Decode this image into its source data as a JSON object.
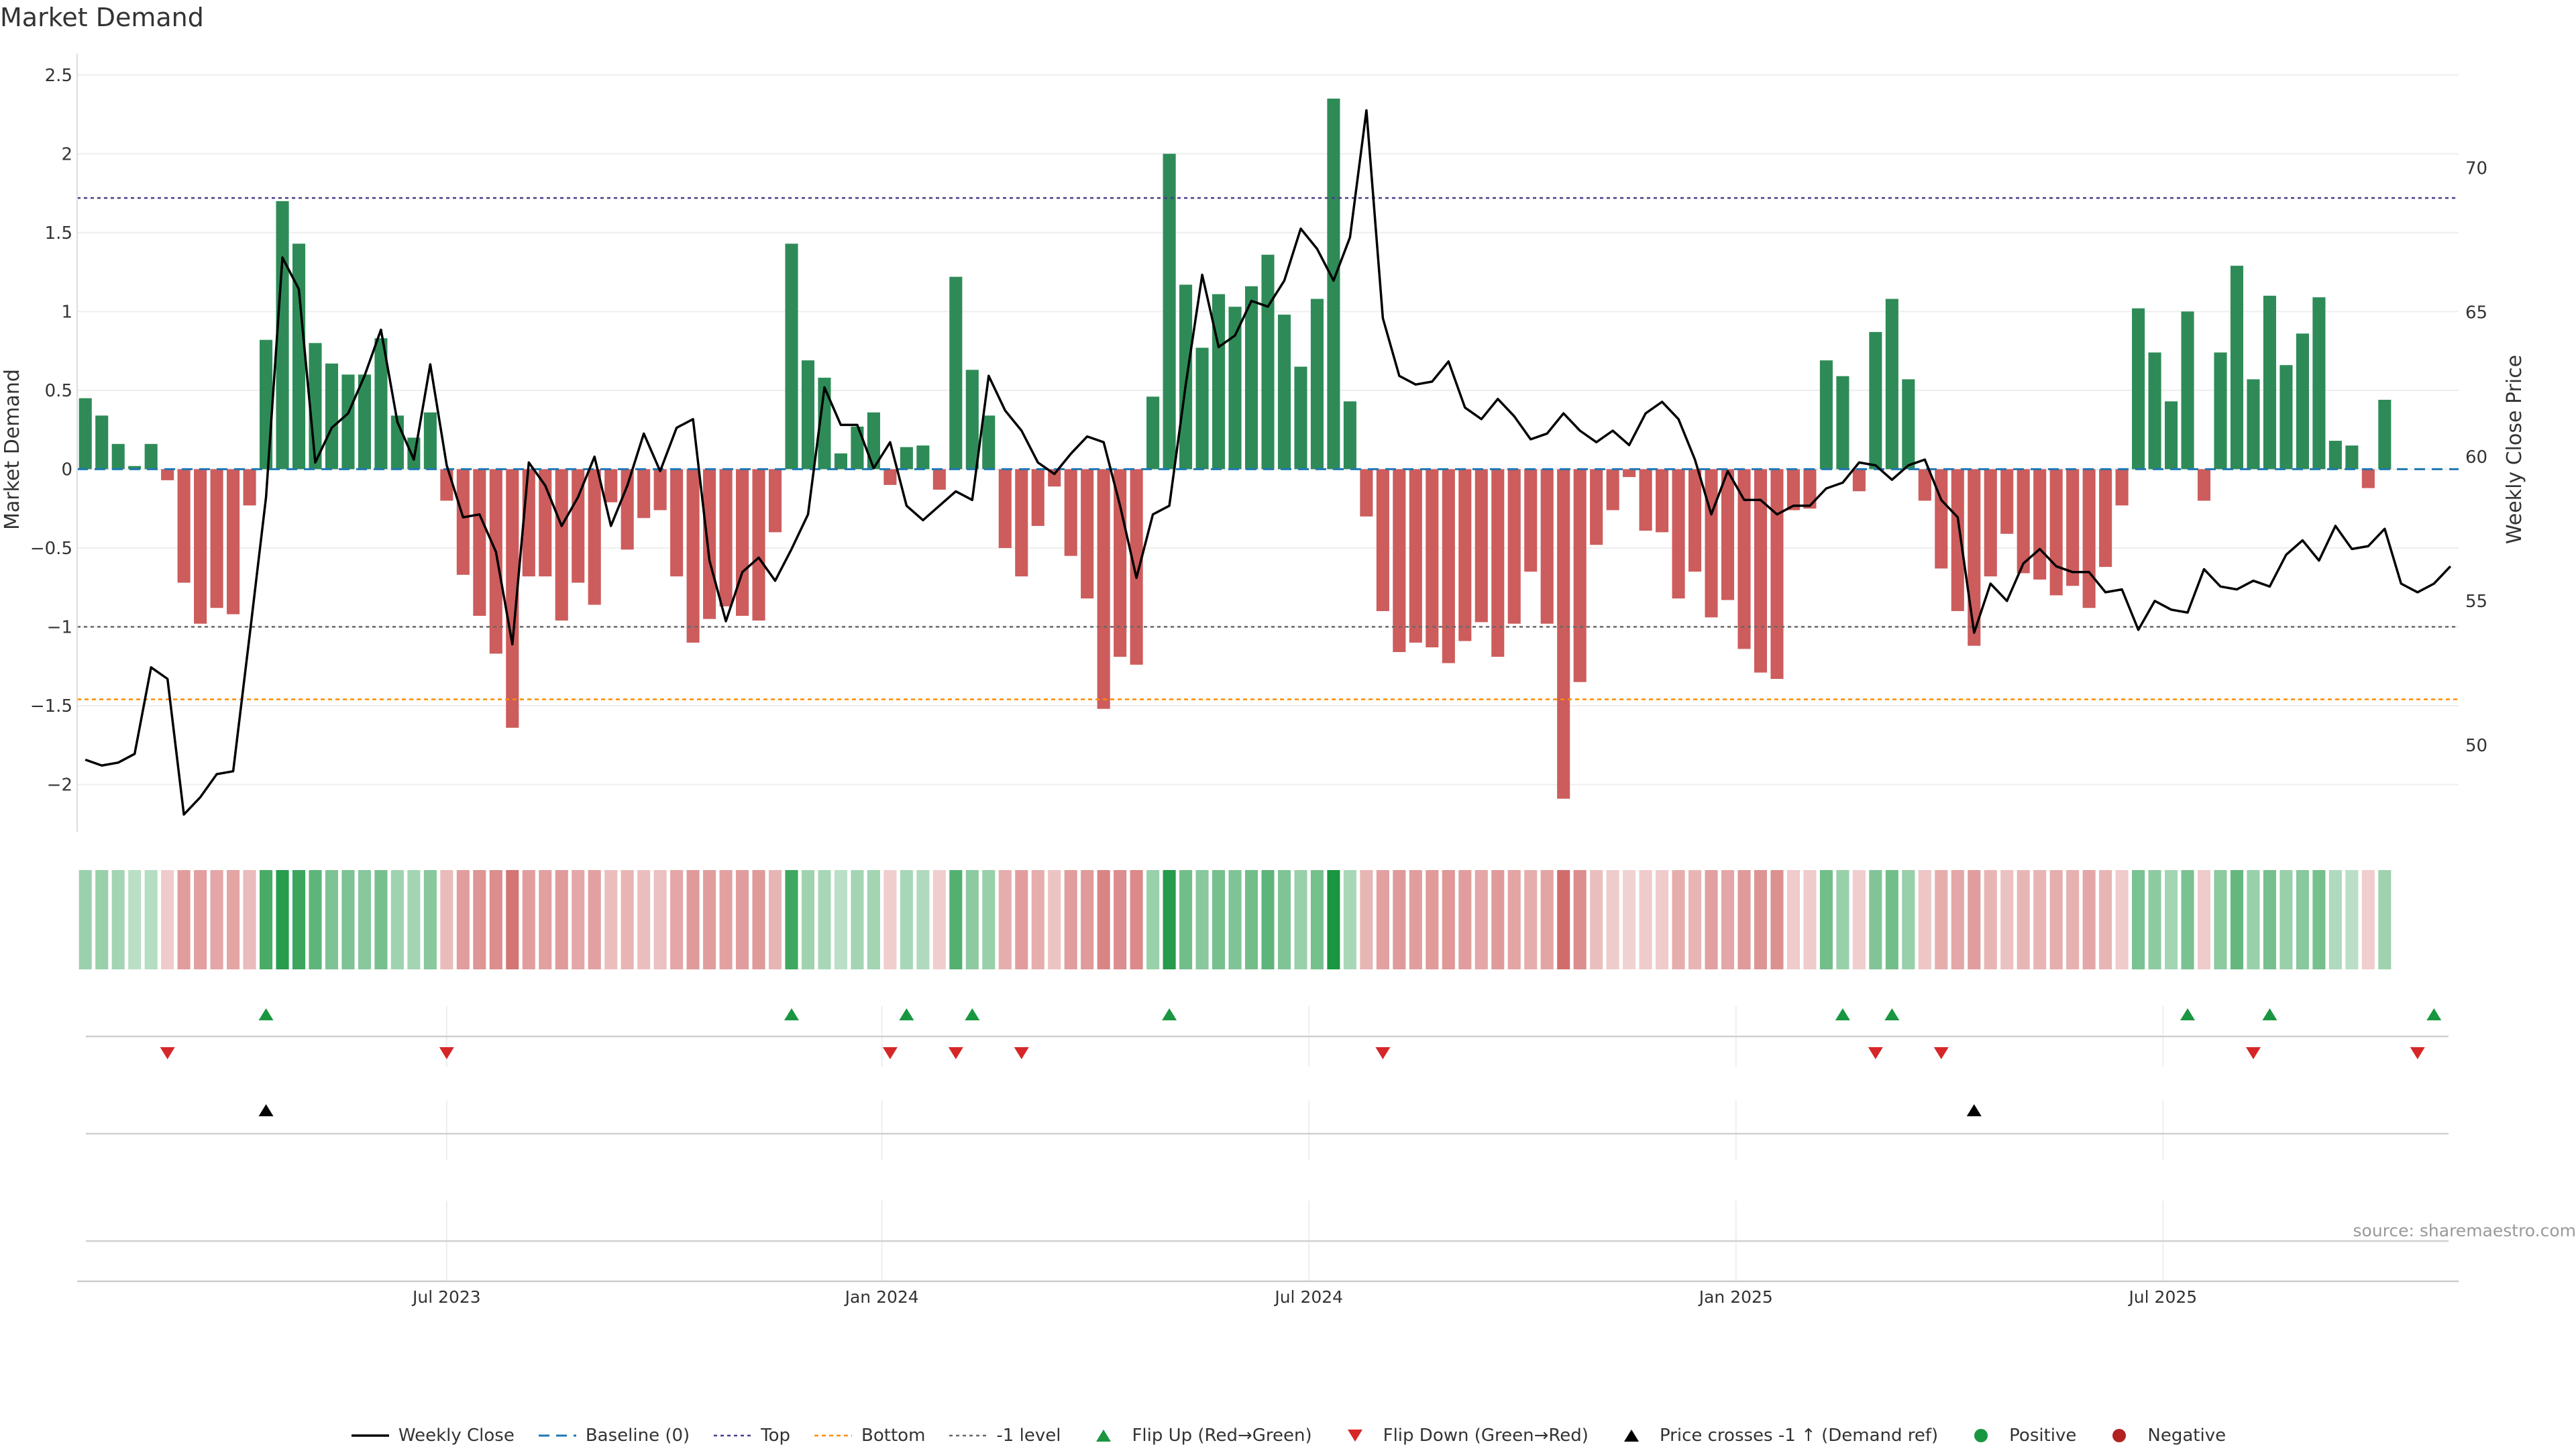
{
  "title": "Market Demand",
  "source": "source: sharemaestro.com",
  "colors": {
    "positive": "#2e8b57",
    "negative": "#cd5c5c",
    "line": "#000000",
    "baseline": "#1f77b4",
    "top": "#483d8b",
    "bottom": "#ff8c00",
    "level": "#696969",
    "flip_up": "#1a9641",
    "flip_down": "#d62728",
    "cross": "#000000",
    "legend_positive": "#1a9641",
    "legend_negative": "#b22222"
  },
  "chart_data": {
    "type": "bar",
    "x_start_date": "2023-01-16",
    "interval_days": 7,
    "xlim": [
      -0.5,
      144.5
    ],
    "x_ticks": [
      {
        "index": 22,
        "label": "Jul 2023"
      },
      {
        "index": 48.5,
        "label": "Jan 2024"
      },
      {
        "index": 74.5,
        "label": "Jul 2024"
      },
      {
        "index": 100.5,
        "label": "Jan 2025"
      },
      {
        "index": 126.5,
        "label": "Jul 2025"
      }
    ],
    "ylabel": "Market Demand",
    "y2label": "Weekly Close Price",
    "ylim": [
      -2.3,
      2.55
    ],
    "yticks": [
      -2,
      -1.5,
      -1,
      -0.5,
      0,
      0.5,
      1,
      1.5,
      2,
      2.5
    ],
    "ytick_labels": [
      "−2",
      "−1.5",
      "−1",
      "−0.5",
      "0",
      "0.5",
      "1",
      "1.5",
      "2",
      "2.5"
    ],
    "y2lim": [
      47,
      73.5
    ],
    "y2ticks": [
      50,
      55,
      60,
      65,
      70
    ],
    "y2tick_labels": [
      "50",
      "55",
      "60",
      "65",
      "70"
    ],
    "levels": {
      "top": 1.72,
      "bottom": -1.46,
      "minus_one": -1.0,
      "baseline": 0
    },
    "demand": [
      0.45,
      0.34,
      0.16,
      0.02,
      0.16,
      -0.07,
      -0.72,
      -0.98,
      -0.88,
      -0.92,
      -0.23,
      0.82,
      1.7,
      1.43,
      0.8,
      0.67,
      0.6,
      0.6,
      0.83,
      0.34,
      0.2,
      0.36,
      -0.2,
      -0.67,
      -0.93,
      -1.17,
      -1.64,
      -0.68,
      -0.68,
      -0.96,
      -0.72,
      -0.86,
      -0.21,
      -0.51,
      -0.31,
      -0.26,
      -0.68,
      -1.1,
      -0.95,
      -0.87,
      -0.93,
      -0.96,
      -0.4,
      1.43,
      0.69,
      0.58,
      0.1,
      0.27,
      0.36,
      -0.1,
      0.14,
      0.15,
      -0.13,
      1.22,
      0.63,
      0.34,
      -0.5,
      -0.68,
      -0.36,
      -0.11,
      -0.55,
      -0.82,
      -1.52,
      -1.19,
      -1.24,
      0.46,
      2.0,
      1.17,
      0.77,
      1.11,
      1.03,
      1.16,
      1.36,
      0.98,
      0.65,
      1.08,
      2.35,
      0.43,
      -0.3,
      -0.9,
      -1.16,
      -1.1,
      -1.13,
      -1.23,
      -1.09,
      -0.97,
      -1.19,
      -0.98,
      -0.65,
      -0.98,
      -2.09,
      -1.35,
      -0.48,
      -0.26,
      -0.05,
      -0.39,
      -0.4,
      -0.82,
      -0.65,
      -0.94,
      -0.83,
      -1.14,
      -1.29,
      -1.33,
      -0.26,
      -0.25,
      0.69,
      0.59,
      -0.14,
      0.87,
      1.08,
      0.57,
      -0.2,
      -0.63,
      -0.9,
      -1.12,
      -0.68,
      -0.41,
      -0.66,
      -0.7,
      -0.8,
      -0.74,
      -0.88,
      -0.62,
      -0.23,
      1.02,
      0.74,
      0.43,
      1.0,
      -0.2,
      0.74,
      1.29,
      0.57,
      1.1,
      0.66,
      0.86,
      1.09,
      0.18,
      0.15,
      -0.12,
      0.44
    ],
    "close": [
      49.5,
      49.3,
      49.4,
      49.7,
      52.7,
      52.3,
      47.6,
      48.2,
      49.0,
      49.1,
      53.8,
      58.6,
      66.9,
      65.8,
      59.8,
      61.0,
      61.5,
      62.8,
      64.4,
      61.2,
      59.9,
      63.2,
      59.7,
      57.9,
      58.0,
      56.7,
      53.5,
      59.8,
      59.0,
      57.6,
      58.6,
      60.0,
      57.6,
      59.0,
      60.8,
      59.5,
      61.0,
      61.3,
      56.4,
      54.3,
      56.0,
      56.5,
      55.7,
      56.8,
      58.0,
      62.4,
      61.1,
      61.1,
      59.6,
      60.5,
      58.3,
      57.8,
      58.3,
      58.8,
      58.5,
      62.8,
      61.6,
      60.9,
      59.8,
      59.4,
      60.1,
      60.7,
      60.5,
      58.3,
      55.8,
      58.0,
      58.3,
      62.5,
      66.3,
      63.8,
      64.2,
      65.4,
      65.2,
      66.1,
      67.9,
      67.2,
      66.1,
      67.6,
      72.0,
      64.8,
      62.8,
      62.5,
      62.6,
      63.3,
      61.7,
      61.3,
      62.0,
      61.4,
      60.6,
      60.8,
      61.5,
      60.9,
      60.5,
      60.9,
      60.4,
      61.5,
      61.9,
      61.3,
      59.9,
      58.0,
      59.5,
      58.5,
      58.5,
      58.0,
      58.3,
      58.3,
      58.9,
      59.1,
      59.8,
      59.7,
      59.2,
      59.7,
      59.9,
      58.5,
      57.9,
      53.9,
      55.6,
      55.0,
      56.3,
      56.8,
      56.2,
      56.0,
      56.0,
      55.3,
      55.4,
      54.0,
      55.0,
      54.7,
      54.6,
      56.1,
      55.5,
      55.4,
      55.7,
      55.5,
      56.6,
      57.1,
      56.4,
      57.6,
      56.8,
      56.9,
      57.5,
      55.6,
      55.3,
      55.6,
      56.2
    ],
    "strip_alpha": [
      0.44,
      0.45,
      0.4,
      0.3,
      0.32,
      0.32,
      0.6,
      0.59,
      0.55,
      0.56,
      0.42,
      0.8,
      0.94,
      0.85,
      0.7,
      0.57,
      0.57,
      0.52,
      0.6,
      0.42,
      0.4,
      0.52,
      0.42,
      0.6,
      0.65,
      0.7,
      0.85,
      0.6,
      0.58,
      0.62,
      0.55,
      0.58,
      0.4,
      0.45,
      0.4,
      0.38,
      0.55,
      0.62,
      0.6,
      0.58,
      0.6,
      0.62,
      0.45,
      0.84,
      0.42,
      0.38,
      0.3,
      0.4,
      0.4,
      0.3,
      0.38,
      0.35,
      0.3,
      0.75,
      0.5,
      0.45,
      0.5,
      0.6,
      0.5,
      0.36,
      0.6,
      0.62,
      0.75,
      0.7,
      0.72,
      0.45,
      0.95,
      0.62,
      0.52,
      0.6,
      0.56,
      0.62,
      0.7,
      0.56,
      0.45,
      0.6,
      1.0,
      0.38,
      0.45,
      0.58,
      0.62,
      0.6,
      0.62,
      0.64,
      0.6,
      0.55,
      0.62,
      0.56,
      0.5,
      0.56,
      0.9,
      0.7,
      0.4,
      0.32,
      0.28,
      0.32,
      0.32,
      0.5,
      0.45,
      0.58,
      0.55,
      0.62,
      0.66,
      0.68,
      0.32,
      0.32,
      0.62,
      0.45,
      0.3,
      0.55,
      0.62,
      0.45,
      0.35,
      0.5,
      0.55,
      0.6,
      0.45,
      0.38,
      0.45,
      0.46,
      0.5,
      0.48,
      0.55,
      0.45,
      0.32,
      0.58,
      0.5,
      0.4,
      0.58,
      0.32,
      0.5,
      0.68,
      0.45,
      0.6,
      0.45,
      0.52,
      0.6,
      0.35,
      0.3,
      0.3,
      0.42
    ],
    "flip_up": [
      11,
      43,
      50,
      54,
      66,
      107,
      110,
      128,
      133,
      143
    ],
    "flip_down": [
      5,
      22,
      49,
      53,
      57,
      79,
      109,
      113,
      132,
      142
    ],
    "price_cross_up": [
      11,
      115
    ]
  },
  "legend": [
    {
      "label": "Weekly Close",
      "symbol": "line"
    },
    {
      "label": "Baseline (0)",
      "symbol": "dash-baseline"
    },
    {
      "label": "Top",
      "symbol": "dot-top"
    },
    {
      "label": "Bottom",
      "symbol": "dot-bottom"
    },
    {
      "label": "-1 level",
      "symbol": "dot-level"
    },
    {
      "label": "Flip Up (Red→Green)",
      "symbol": "tri-up-green"
    },
    {
      "label": "Flip Down (Green→Red)",
      "symbol": "tri-down-red"
    },
    {
      "label": "Price crosses -1 ↑ (Demand ref)",
      "symbol": "tri-up-black"
    },
    {
      "label": "Positive",
      "symbol": "dot-green"
    },
    {
      "label": "Negative",
      "symbol": "dot-red"
    }
  ]
}
